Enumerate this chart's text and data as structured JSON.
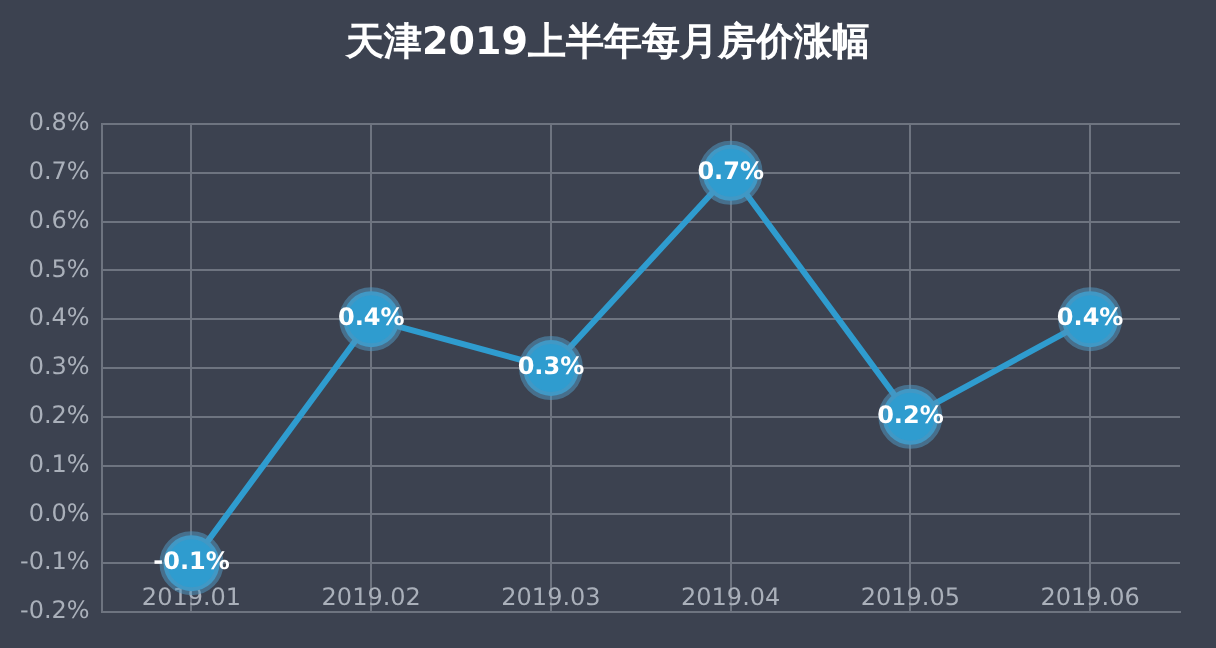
{
  "chart_data": {
    "type": "line",
    "title": "天津2019上半年每月房价涨幅",
    "categories": [
      "2019.01",
      "2019.02",
      "2019.03",
      "2019.04",
      "2019.05",
      "2019.06"
    ],
    "series": [
      {
        "color": "#2f9ccf",
        "values": [
          -0.1,
          0.4,
          0.3,
          0.7,
          0.2,
          0.4
        ],
        "value_labels": [
          "-0.1%",
          "0.4%",
          "0.3%",
          "0.7%",
          "0.2%",
          "0.4%"
        ]
      }
    ],
    "ylim": [
      -0.2,
      0.8
    ],
    "yticks": [
      {
        "value": -0.2,
        "label": "-0.2%"
      },
      {
        "value": -0.1,
        "label": "-0.1%"
      },
      {
        "value": 0,
        "label": "0.0%"
      },
      {
        "value": 0.1,
        "label": "0.1%"
      },
      {
        "value": 0.2,
        "label": "0.2%"
      },
      {
        "value": 0.3,
        "label": "0.3%"
      },
      {
        "value": 0.4,
        "label": "0.4%"
      },
      {
        "value": 0.5,
        "label": "0.5%"
      },
      {
        "value": 0.6,
        "label": "0.6%"
      },
      {
        "value": 0.7,
        "label": "0.7%"
      },
      {
        "value": 0.8,
        "label": "0.8%"
      }
    ],
    "grid": true,
    "legend": false,
    "marker": "circle",
    "line_style": "solid"
  }
}
